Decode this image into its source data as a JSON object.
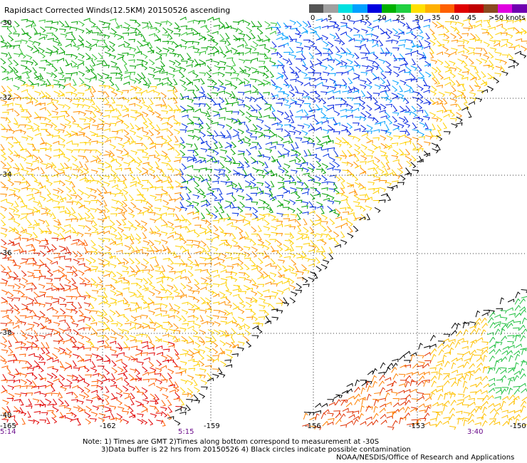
{
  "title": "Rapidsact Corrected Winds(12.5KM) 20150526 ascending",
  "legend": {
    "unit_label": ">50 knots",
    "tick_labels": [
      "0",
      "5",
      "10",
      "15",
      "20",
      "25",
      "30",
      "35",
      "40",
      "45"
    ],
    "colors": [
      "#555555",
      "#a0a0a0",
      "#00e0e0",
      "#00a0ff",
      "#0000e0",
      "#00b000",
      "#20d040",
      "#ffe000",
      "#ffb000",
      "#ff6000",
      "#e00000",
      "#c00000",
      "#8a4a20",
      "#e000e0",
      "#7000b0"
    ]
  },
  "lat_labels": [
    "-30",
    "-32",
    "-34",
    "-36",
    "-38",
    "-40"
  ],
  "lon_labels": [
    "-165",
    "-162",
    "-159",
    "-156",
    "-153",
    "-150"
  ],
  "time_labels": [
    "5:14",
    "5:15",
    "3:40"
  ],
  "notes": [
    "Note: 1) Times are GMT 2)Times along bottom correspond to measurement at -30S",
    "3)Data buffer is 22 hrs from 20150526 4) Black circles indicate possible contamination"
  ],
  "credit": "NOAA/NESDIS/Office of Research and Applications"
}
